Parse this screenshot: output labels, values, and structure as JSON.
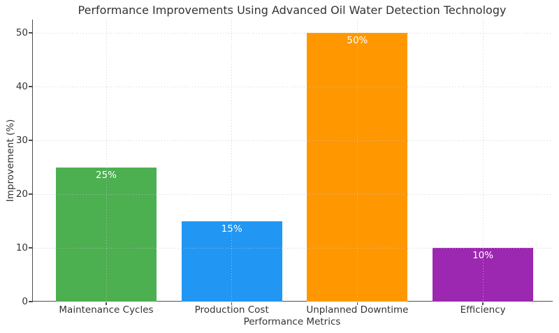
{
  "figure": {
    "background": "#ffffff",
    "text_color": "#333333",
    "axis_color": "#4d4d4d",
    "grid_color": "#c6c6c6"
  },
  "chart_data": {
    "type": "bar",
    "title": "Performance Improvements Using Advanced Oil Water Detection Technology",
    "xlabel": "Performance Metrics",
    "ylabel": "Improvement (%)",
    "categories": [
      "Maintenance Cycles",
      "Production Cost",
      "Unplanned Downtime",
      "Efficiency"
    ],
    "values": [
      25,
      15,
      50,
      10
    ],
    "bar_labels": [
      "25%",
      "15%",
      "50%",
      "10%"
    ],
    "bar_colors": [
      "#4caf50",
      "#2196f3",
      "#ff9800",
      "#9c27b0"
    ],
    "bar_label_color": "#ffffff",
    "yticks": [
      0,
      10,
      20,
      30,
      40,
      50
    ],
    "ytick_labels": [
      "0",
      "10",
      "20",
      "30",
      "40",
      "50"
    ],
    "ylim": [
      0,
      52.5
    ],
    "grid": true,
    "grid_style": "dotted",
    "legend": false
  }
}
